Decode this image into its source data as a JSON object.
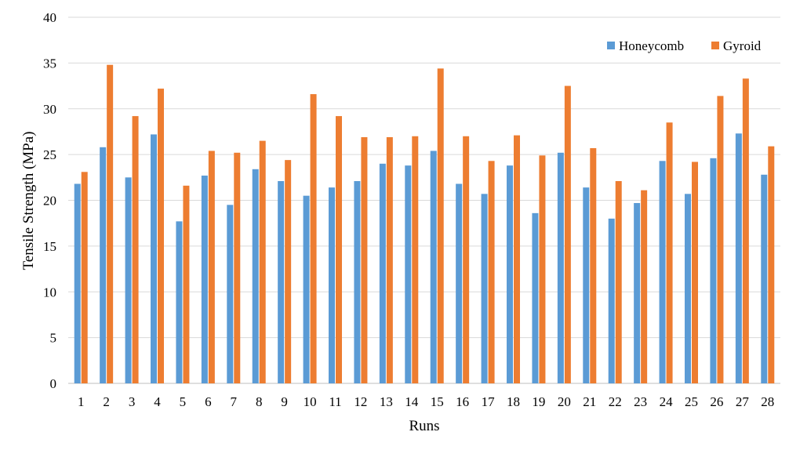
{
  "chart_data": {
    "type": "bar",
    "xlabel": "Runs",
    "ylabel": "Tensile Strength (MPa)",
    "ylim": [
      0,
      40
    ],
    "yticks": [
      0,
      5,
      10,
      15,
      20,
      25,
      30,
      35,
      40
    ],
    "grid": "horizontal",
    "legend_position": "top-right",
    "categories": [
      "1",
      "2",
      "3",
      "4",
      "5",
      "6",
      "7",
      "8",
      "9",
      "10",
      "11",
      "12",
      "13",
      "14",
      "15",
      "16",
      "17",
      "18",
      "19",
      "20",
      "21",
      "22",
      "23",
      "24",
      "25",
      "26",
      "27",
      "28"
    ],
    "series": [
      {
        "name": "Honeycomb",
        "color": "#5b9bd5",
        "values": [
          21.8,
          25.8,
          22.5,
          27.2,
          17.7,
          22.7,
          19.5,
          23.4,
          22.1,
          20.5,
          21.4,
          22.1,
          24.0,
          23.8,
          25.4,
          21.8,
          20.7,
          23.8,
          18.6,
          25.2,
          21.4,
          18.0,
          19.7,
          24.3,
          20.7,
          24.6,
          27.3,
          22.8
        ]
      },
      {
        "name": "Gyroid",
        "color": "#ed7d31",
        "values": [
          23.1,
          34.8,
          29.2,
          32.2,
          21.6,
          25.4,
          25.2,
          26.5,
          24.4,
          31.6,
          29.2,
          26.9,
          26.9,
          27.0,
          34.4,
          27.0,
          24.3,
          27.1,
          24.9,
          32.5,
          25.7,
          22.1,
          21.1,
          28.5,
          24.2,
          31.4,
          33.3,
          25.9
        ]
      }
    ]
  }
}
